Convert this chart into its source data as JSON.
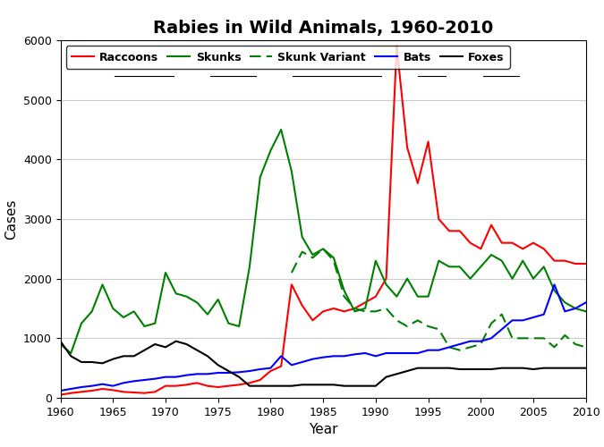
{
  "title": "Rabies in Wild Animals, 1960-2010",
  "xlabel": "Year",
  "ylabel": "Cases",
  "xlim": [
    1960,
    2010
  ],
  "ylim": [
    0,
    6000
  ],
  "yticks": [
    0,
    1000,
    2000,
    3000,
    4000,
    5000,
    6000
  ],
  "xticks": [
    1960,
    1965,
    1970,
    1975,
    1980,
    1985,
    1990,
    1995,
    2000,
    2005,
    2010
  ],
  "years": [
    1960,
    1961,
    1962,
    1963,
    1964,
    1965,
    1966,
    1967,
    1968,
    1969,
    1970,
    1971,
    1972,
    1973,
    1974,
    1975,
    1976,
    1977,
    1978,
    1979,
    1980,
    1981,
    1982,
    1983,
    1984,
    1985,
    1986,
    1987,
    1988,
    1989,
    1990,
    1991,
    1992,
    1993,
    1994,
    1995,
    1996,
    1997,
    1998,
    1999,
    2000,
    2001,
    2002,
    2003,
    2004,
    2005,
    2006,
    2007,
    2008,
    2009,
    2010
  ],
  "raccoons": [
    50,
    80,
    100,
    120,
    150,
    130,
    100,
    90,
    80,
    100,
    200,
    200,
    220,
    250,
    200,
    180,
    200,
    220,
    250,
    300,
    450,
    530,
    1900,
    1550,
    1300,
    1450,
    1500,
    1450,
    1500,
    1600,
    1700,
    2000,
    5900,
    4200,
    3600,
    4300,
    3000,
    2800,
    2800,
    2600,
    2500,
    2900,
    2600,
    2600,
    2500,
    2600,
    2500,
    2300,
    2300,
    2250,
    2250
  ],
  "skunks": [
    900,
    750,
    1250,
    1450,
    1900,
    1500,
    1350,
    1450,
    1200,
    1250,
    2100,
    1750,
    1700,
    1600,
    1400,
    1650,
    1250,
    1200,
    2200,
    3700,
    4150,
    4500,
    3800,
    2700,
    2400,
    2500,
    2350,
    1800,
    1450,
    1500,
    2300,
    1900,
    1700,
    2000,
    1700,
    1700,
    2300,
    2200,
    2200,
    2000,
    2200,
    2400,
    2300,
    2000,
    2300,
    2000,
    2200,
    1800,
    1600,
    1500,
    1450
  ],
  "skunk_variant": [
    null,
    null,
    null,
    null,
    null,
    null,
    null,
    null,
    null,
    null,
    null,
    null,
    null,
    null,
    null,
    null,
    null,
    null,
    null,
    null,
    null,
    null,
    2100,
    2450,
    2350,
    2500,
    2300,
    1700,
    1500,
    1450,
    1450,
    1500,
    1300,
    1200,
    1300,
    1200,
    1150,
    850,
    800,
    850,
    900,
    1250,
    1400,
    1000,
    1000,
    1000,
    1000,
    850,
    1050,
    900,
    850
  ],
  "bats": [
    120,
    150,
    180,
    200,
    230,
    200,
    250,
    280,
    300,
    320,
    350,
    350,
    380,
    400,
    400,
    420,
    420,
    430,
    450,
    480,
    500,
    700,
    550,
    600,
    650,
    680,
    700,
    700,
    730,
    750,
    700,
    750,
    750,
    750,
    750,
    800,
    800,
    850,
    900,
    950,
    950,
    1000,
    1150,
    1300,
    1300,
    1350,
    1400,
    1900,
    1450,
    1500,
    1600
  ],
  "foxes": [
    950,
    700,
    600,
    600,
    580,
    650,
    700,
    700,
    800,
    900,
    850,
    950,
    900,
    800,
    700,
    550,
    450,
    350,
    200,
    200,
    200,
    200,
    200,
    220,
    220,
    220,
    220,
    200,
    200,
    200,
    200,
    350,
    400,
    450,
    500,
    500,
    500,
    500,
    480,
    480,
    480,
    480,
    500,
    500,
    500,
    480,
    500,
    500,
    500,
    500,
    500
  ],
  "raccoons_color": "#ff0000",
  "skunks_color": "#008000",
  "skunk_variant_color": "#008000",
  "bats_color": "#0000ff",
  "foxes_color": "#000000",
  "legend_labels": [
    "Raccoons",
    "Skunks",
    "Skunk Variant",
    "Bats",
    "Foxes"
  ]
}
